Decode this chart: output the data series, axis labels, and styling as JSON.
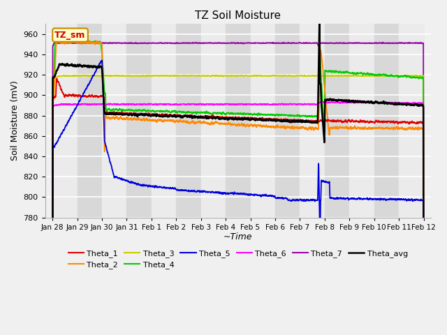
{
  "title": "TZ Soil Moisture",
  "xlabel": "~Time",
  "ylabel": "Soil Moisture (mV)",
  "ylim": [
    780,
    970
  ],
  "yticks": [
    780,
    800,
    820,
    840,
    860,
    880,
    900,
    920,
    940,
    960
  ],
  "xlim": [
    -0.3,
    15.3
  ],
  "xtick_labels": [
    "Jan 28",
    "Jan 29",
    "Jan 30",
    "Jan 31",
    "Feb 1",
    "Feb 2",
    "Feb 3",
    "Feb 4",
    "Feb 5",
    "Feb 6",
    "Feb 7",
    "Feb 8",
    "Feb 9",
    "Feb 10",
    "Feb 11",
    "Feb 12"
  ],
  "xtick_positions": [
    0,
    1,
    2,
    3,
    4,
    5,
    6,
    7,
    8,
    9,
    10,
    11,
    12,
    13,
    14,
    15
  ],
  "colors": {
    "Theta_1": "#dd0000",
    "Theta_2": "#ff8800",
    "Theta_3": "#cccc00",
    "Theta_4": "#00cc00",
    "Theta_5": "#0000dd",
    "Theta_6": "#ff00ff",
    "Theta_7": "#9900aa",
    "Theta_avg": "#000000"
  },
  "band_colors": [
    "#ebebeb",
    "#d8d8d8"
  ],
  "white_grid": true,
  "label_box_text": "TZ_sm",
  "label_box_facecolor": "#ffffcc",
  "label_box_edgecolor": "#cc8800",
  "label_text_color": "#cc0000",
  "fig_facecolor": "#f0f0f0"
}
